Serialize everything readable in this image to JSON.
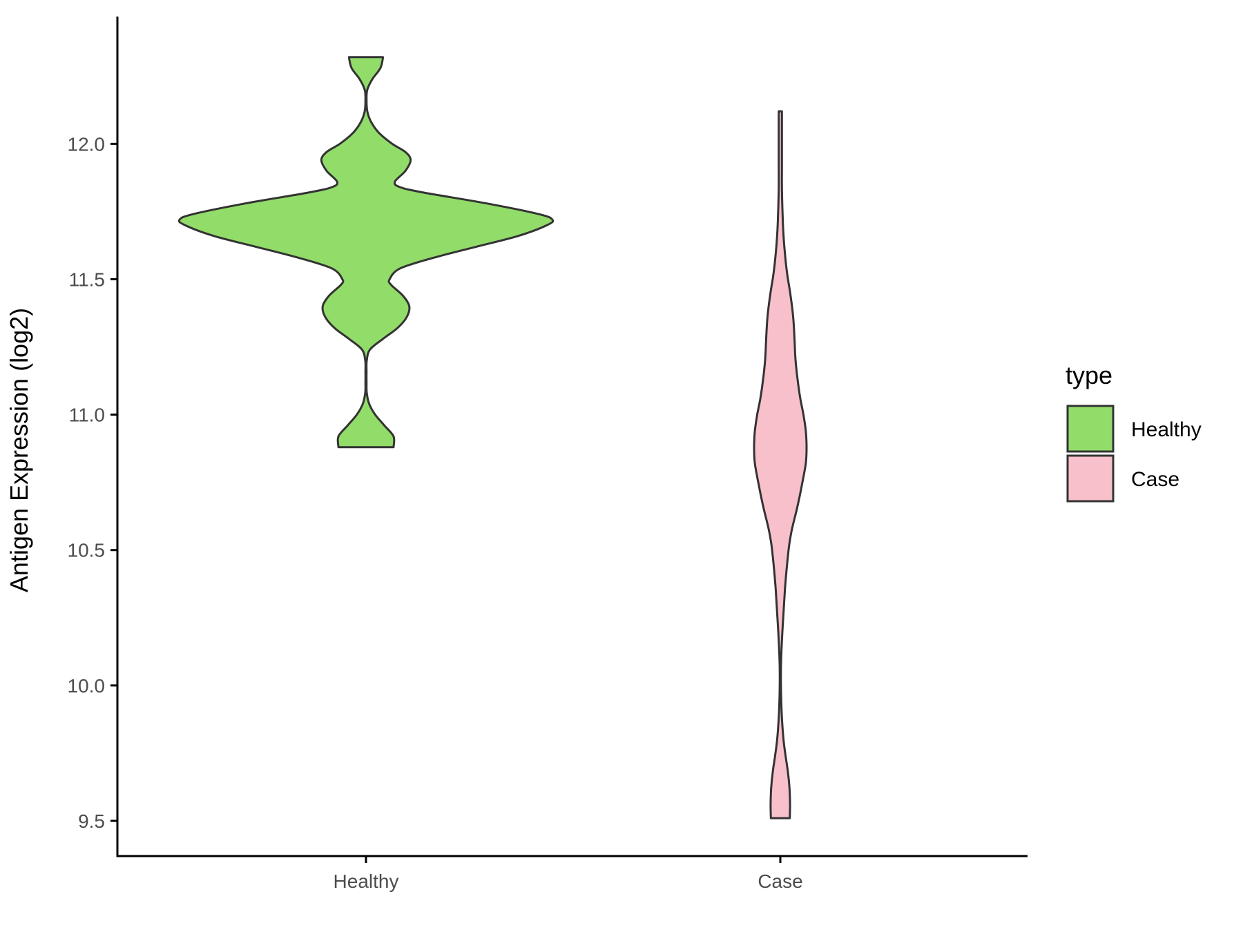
{
  "chart_data": {
    "type": "violin",
    "title": "",
    "xlabel": "",
    "ylabel": "Antigen Expression (log2)",
    "ylim": [
      9.37,
      12.47
    ],
    "yticks": [
      9.5,
      10.0,
      10.5,
      11.0,
      11.5,
      12.0
    ],
    "ytick_labels": [
      "9.5",
      "10.0",
      "10.5",
      "11.0",
      "11.5",
      "12.0"
    ],
    "categories": [
      "Healthy",
      "Case"
    ],
    "grid": false,
    "legend": {
      "title": "type",
      "position": "right",
      "entries": [
        {
          "label": "Healthy",
          "color": "#92dc6a"
        },
        {
          "label": "Case",
          "color": "#f8c0cb"
        }
      ]
    },
    "series": [
      {
        "category": "Healthy",
        "color": "#92dc6a",
        "y_min": 10.88,
        "y_max": 12.32,
        "density_profile": [
          [
            10.88,
            0.105
          ],
          [
            10.92,
            0.105
          ],
          [
            10.96,
            0.07
          ],
          [
            11.0,
            0.035
          ],
          [
            11.04,
            0.012
          ],
          [
            11.08,
            0.003
          ],
          [
            11.12,
            0.002
          ],
          [
            11.16,
            0.002
          ],
          [
            11.2,
            0.003
          ],
          [
            11.24,
            0.015
          ],
          [
            11.28,
            0.065
          ],
          [
            11.32,
            0.12
          ],
          [
            11.36,
            0.155
          ],
          [
            11.4,
            0.165
          ],
          [
            11.44,
            0.14
          ],
          [
            11.48,
            0.095
          ],
          [
            11.5,
            0.09
          ],
          [
            11.54,
            0.13
          ],
          [
            11.58,
            0.26
          ],
          [
            11.62,
            0.42
          ],
          [
            11.66,
            0.58
          ],
          [
            11.7,
            0.69
          ],
          [
            11.72,
            0.71
          ],
          [
            11.74,
            0.66
          ],
          [
            11.78,
            0.46
          ],
          [
            11.82,
            0.22
          ],
          [
            11.84,
            0.13
          ],
          [
            11.86,
            0.11
          ],
          [
            11.9,
            0.15
          ],
          [
            11.94,
            0.17
          ],
          [
            11.97,
            0.15
          ],
          [
            12.0,
            0.1
          ],
          [
            12.04,
            0.05
          ],
          [
            12.08,
            0.02
          ],
          [
            12.12,
            0.005
          ],
          [
            12.16,
            0.002
          ],
          [
            12.2,
            0.005
          ],
          [
            12.24,
            0.025
          ],
          [
            12.28,
            0.055
          ],
          [
            12.32,
            0.065
          ]
        ]
      },
      {
        "category": "Case",
        "color": "#f8c0cb",
        "y_min": 9.51,
        "y_max": 12.12,
        "density_profile": [
          [
            9.51,
            0.036
          ],
          [
            9.56,
            0.037
          ],
          [
            9.62,
            0.035
          ],
          [
            9.68,
            0.029
          ],
          [
            9.74,
            0.02
          ],
          [
            9.8,
            0.012
          ],
          [
            9.88,
            0.006
          ],
          [
            9.96,
            0.003
          ],
          [
            10.04,
            0.002
          ],
          [
            10.12,
            0.004
          ],
          [
            10.2,
            0.008
          ],
          [
            10.28,
            0.013
          ],
          [
            10.36,
            0.018
          ],
          [
            10.44,
            0.025
          ],
          [
            10.52,
            0.034
          ],
          [
            10.58,
            0.045
          ],
          [
            10.66,
            0.065
          ],
          [
            10.74,
            0.082
          ],
          [
            10.82,
            0.097
          ],
          [
            10.88,
            0.1
          ],
          [
            10.94,
            0.097
          ],
          [
            11.0,
            0.088
          ],
          [
            11.06,
            0.076
          ],
          [
            11.12,
            0.067
          ],
          [
            11.2,
            0.058
          ],
          [
            11.28,
            0.054
          ],
          [
            11.36,
            0.049
          ],
          [
            11.44,
            0.039
          ],
          [
            11.52,
            0.026
          ],
          [
            11.6,
            0.017
          ],
          [
            11.68,
            0.011
          ],
          [
            11.76,
            0.008
          ],
          [
            11.84,
            0.006
          ],
          [
            11.92,
            0.006
          ],
          [
            12.0,
            0.006
          ],
          [
            12.06,
            0.006
          ],
          [
            12.12,
            0.006
          ]
        ]
      }
    ]
  }
}
